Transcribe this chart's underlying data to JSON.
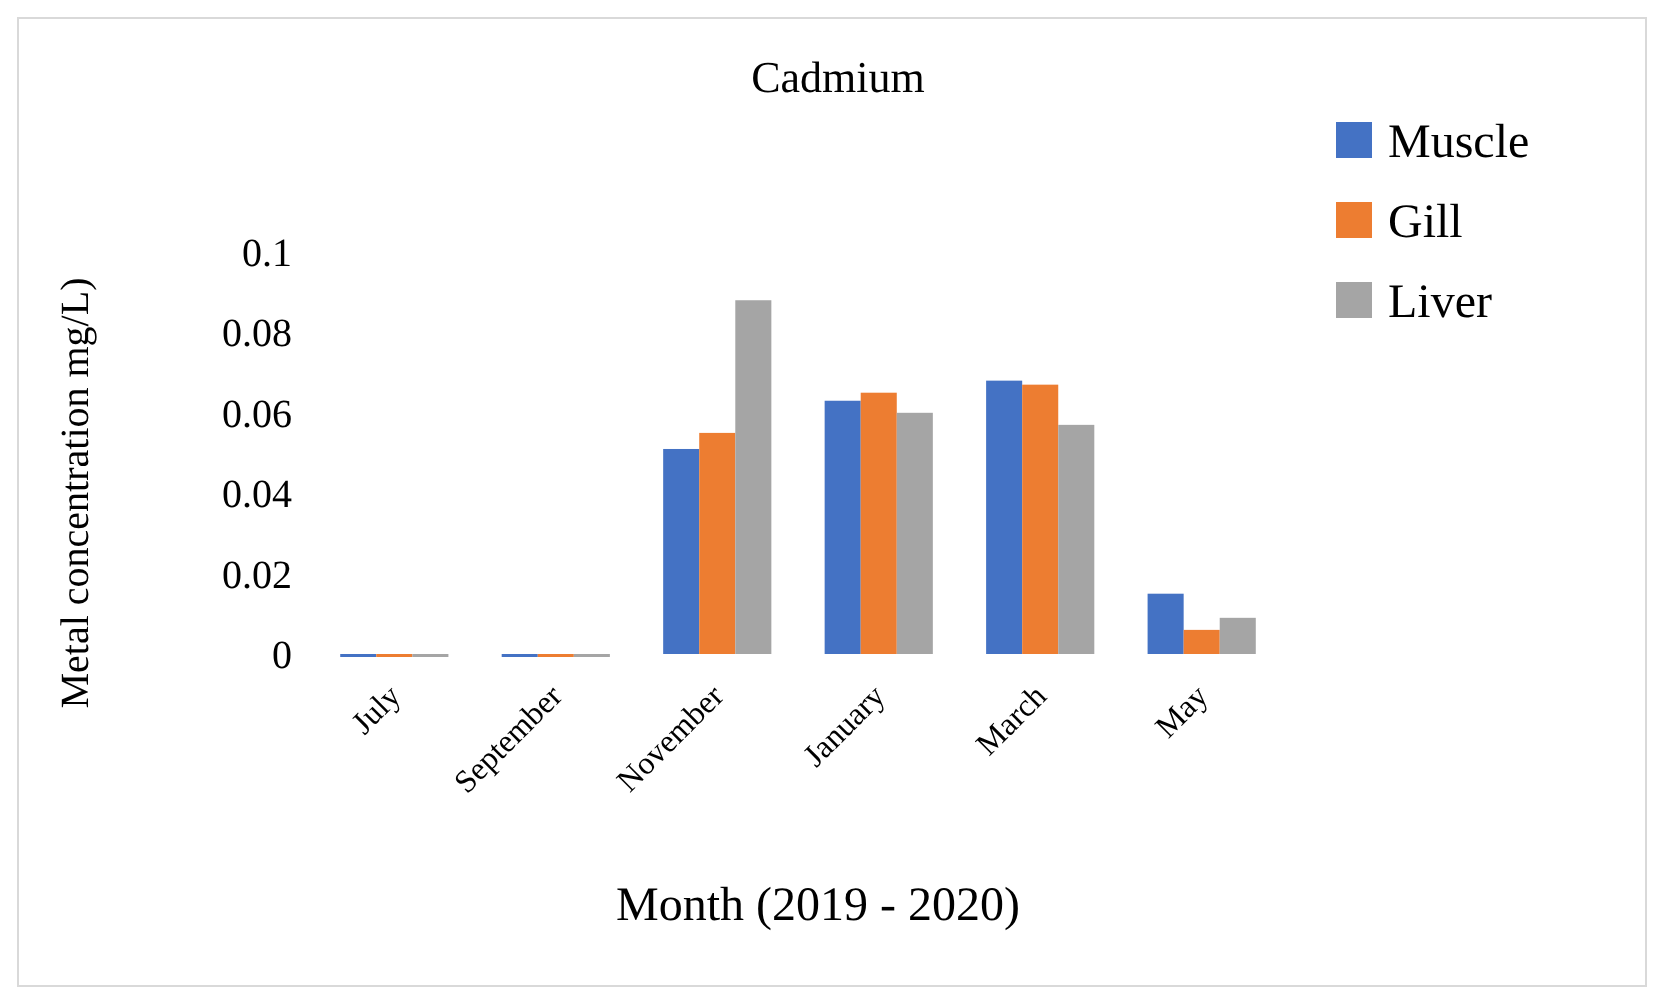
{
  "chart_data": {
    "type": "bar",
    "title": "Cadmium",
    "xlabel": "Month (2019 - 2020)",
    "ylabel": "Metal concentration mg/L)",
    "categories": [
      "July",
      "September",
      "November",
      "January",
      "March",
      "May"
    ],
    "series": [
      {
        "name": "Muscle",
        "color": "#4472c4",
        "values": [
          0,
          0,
          0.051,
          0.063,
          0.068,
          0.015
        ]
      },
      {
        "name": "Gill",
        "color": "#ed7d31",
        "values": [
          0,
          0,
          0.055,
          0.065,
          0.067,
          0.006
        ]
      },
      {
        "name": "Liver",
        "color": "#a5a5a5",
        "values": [
          0,
          0,
          0.088,
          0.06,
          0.057,
          0.009
        ]
      }
    ],
    "ylim": [
      0,
      0.1
    ],
    "yticks": [
      0,
      0.02,
      0.04,
      0.06,
      0.08,
      0.1
    ],
    "grid": false,
    "legend": "top right"
  }
}
